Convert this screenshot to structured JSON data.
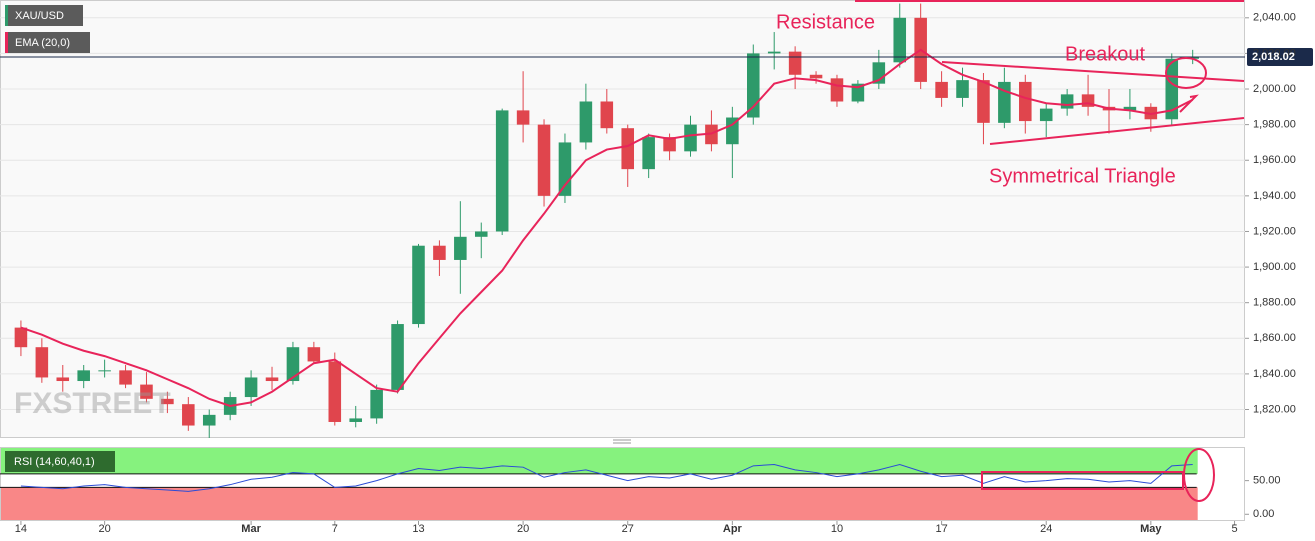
{
  "chart_data": [
    {
      "type": "candlestick",
      "symbol": "XAU/USD",
      "indicator_label": "EMA (20,0)",
      "annotations": [
        "Resistance",
        "Breakout",
        "Symmetrical Triangle"
      ],
      "watermark": "FXSTREET",
      "up_color": "#2e9a6a",
      "down_color": "#e0454d",
      "candles": [
        [
          1866,
          1870,
          1850,
          1855
        ],
        [
          1855,
          1860,
          1835,
          1838
        ],
        [
          1838,
          1845,
          1830,
          1836
        ],
        [
          1836,
          1845,
          1832,
          1842
        ],
        [
          1842,
          1848,
          1838,
          1842
        ],
        [
          1842,
          1845,
          1832,
          1834
        ],
        [
          1834,
          1841,
          1824,
          1826
        ],
        [
          1826,
          1830,
          1818,
          1823
        ],
        [
          1823,
          1827,
          1808,
          1811
        ],
        [
          1811,
          1820,
          1804,
          1817
        ],
        [
          1817,
          1830,
          1814,
          1827
        ],
        [
          1827,
          1842,
          1822,
          1838
        ],
        [
          1838,
          1844,
          1831,
          1836
        ],
        [
          1836,
          1858,
          1834,
          1855
        ],
        [
          1855,
          1858,
          1846,
          1847
        ],
        [
          1847,
          1852,
          1811,
          1813
        ],
        [
          1813,
          1822,
          1810,
          1815
        ],
        [
          1815,
          1834,
          1812,
          1831
        ],
        [
          1831,
          1870,
          1829,
          1868
        ],
        [
          1868,
          1913,
          1866,
          1912
        ],
        [
          1912,
          1915,
          1895,
          1904
        ],
        [
          1904,
          1937,
          1885,
          1917
        ],
        [
          1917,
          1925,
          1905,
          1920
        ],
        [
          1920,
          1989,
          1918,
          1988
        ],
        [
          1988,
          2010,
          1970,
          1980
        ],
        [
          1980,
          1983,
          1934,
          1940
        ],
        [
          1940,
          1975,
          1936,
          1970
        ],
        [
          1970,
          2003,
          1966,
          1993
        ],
        [
          1993,
          2000,
          1975,
          1978
        ],
        [
          1978,
          1980,
          1945,
          1955
        ],
        [
          1955,
          1975,
          1950,
          1973
        ],
        [
          1973,
          1975,
          1960,
          1965
        ],
        [
          1965,
          1985,
          1962,
          1980
        ],
        [
          1980,
          1988,
          1965,
          1969
        ],
        [
          1969,
          1990,
          1950,
          1984
        ],
        [
          1984,
          2025,
          1980,
          2020
        ],
        [
          2020,
          2032,
          2011,
          2021
        ],
        [
          2021,
          2024,
          2000,
          2008
        ],
        [
          2008,
          2010,
          2003,
          2006
        ],
        [
          2006,
          2008,
          1990,
          1993
        ],
        [
          1993,
          2005,
          1992,
          2003
        ],
        [
          2003,
          2022,
          2000,
          2015
        ],
        [
          2015,
          2048,
          2012,
          2040
        ],
        [
          2040,
          2048,
          2000,
          2004
        ],
        [
          2004,
          2010,
          1990,
          1995
        ],
        [
          1995,
          2012,
          1990,
          2005
        ],
        [
          2005,
          2009,
          1969,
          1981
        ],
        [
          1981,
          2012,
          1978,
          2004
        ],
        [
          2004,
          2008,
          1975,
          1982
        ],
        [
          1982,
          1992,
          1973,
          1989
        ],
        [
          1989,
          2000,
          1985,
          1997
        ],
        [
          1997,
          2008,
          1985,
          1990
        ],
        [
          1990,
          2000,
          1975,
          1988
        ],
        [
          1988,
          2000,
          1983,
          1990
        ],
        [
          1990,
          1992,
          1976,
          1983
        ],
        [
          1983,
          2020,
          1980,
          2017
        ],
        [
          2017,
          2022,
          2014,
          2018
        ]
      ],
      "ema": {
        "color": "#e8245a",
        "values": [
          1866,
          1862,
          1857,
          1853,
          1850,
          1846,
          1842,
          1837,
          1832,
          1826,
          1822,
          1824,
          1830,
          1838,
          1846,
          1848,
          1840,
          1832,
          1830,
          1846,
          1860,
          1874,
          1886,
          1898,
          1915,
          1930,
          1946,
          1960,
          1966,
          1968,
          1974,
          1972,
          1974,
          1975,
          1980,
          1990,
          2003,
          2006,
          2005,
          2002,
          2001,
          2005,
          2014,
          2022,
          2014,
          2008,
          2004,
          1999,
          1995,
          1992,
          1991,
          1992,
          1989,
          1988,
          1986,
          1988,
          1994
        ]
      },
      "last_price": {
        "value": 2018.02,
        "label": "2,018.02"
      },
      "xlim": [
        -1,
        58.5
      ],
      "ylim": [
        1804,
        2050
      ],
      "yticks": [
        {
          "value": 1820,
          "label": "1,820.00"
        },
        {
          "value": 1840,
          "label": "1,840.00"
        },
        {
          "value": 1860,
          "label": "1,860.00"
        },
        {
          "value": 1880,
          "label": "1,880.00"
        },
        {
          "value": 1900,
          "label": "1,900.00"
        },
        {
          "value": 1920,
          "label": "1,920.00"
        },
        {
          "value": 1940,
          "label": "1,940.00"
        },
        {
          "value": 1960,
          "label": "1,960.00"
        },
        {
          "value": 1980,
          "label": "1,980.00"
        },
        {
          "value": 2000,
          "label": "2,000.00"
        },
        {
          "value": 2020,
          "label": "2,020.00"
        },
        {
          "value": 2040,
          "label": "2,040.00"
        }
      ]
    },
    {
      "type": "rsi",
      "name": "RSI (14,60,40,1)",
      "color": "#2a4bd7",
      "upper": 60,
      "lower": 40,
      "values": [
        42,
        40,
        38,
        42,
        44,
        40,
        38,
        36,
        34,
        38,
        44,
        52,
        55,
        62,
        60,
        40,
        42,
        50,
        60,
        68,
        65,
        70,
        68,
        72,
        70,
        55,
        62,
        66,
        58,
        50,
        56,
        54,
        60,
        52,
        58,
        72,
        74,
        66,
        62,
        56,
        60,
        66,
        74,
        64,
        56,
        58,
        46,
        56,
        48,
        50,
        53,
        52,
        48,
        50,
        46,
        72,
        74
      ],
      "xlim": [
        -1,
        58.5
      ],
      "ylim": [
        -10,
        100
      ],
      "yticks": [
        {
          "value": 0,
          "label": "0.00"
        },
        {
          "value": 50,
          "label": "50.00"
        }
      ],
      "xticks": [
        {
          "value": 0,
          "label": "14"
        },
        {
          "value": 4,
          "label": "20"
        },
        {
          "value": 11,
          "label": "Mar"
        },
        {
          "value": 15,
          "label": "7"
        },
        {
          "value": 19,
          "label": "13"
        },
        {
          "value": 24,
          "label": "20"
        },
        {
          "value": 29,
          "label": "27"
        },
        {
          "value": 34,
          "label": "Apr"
        },
        {
          "value": 39,
          "label": "10"
        },
        {
          "value": 44,
          "label": "17"
        },
        {
          "value": 49,
          "label": "24"
        },
        {
          "value": 54,
          "label": "May"
        },
        {
          "value": 58,
          "label": "5"
        }
      ]
    }
  ]
}
